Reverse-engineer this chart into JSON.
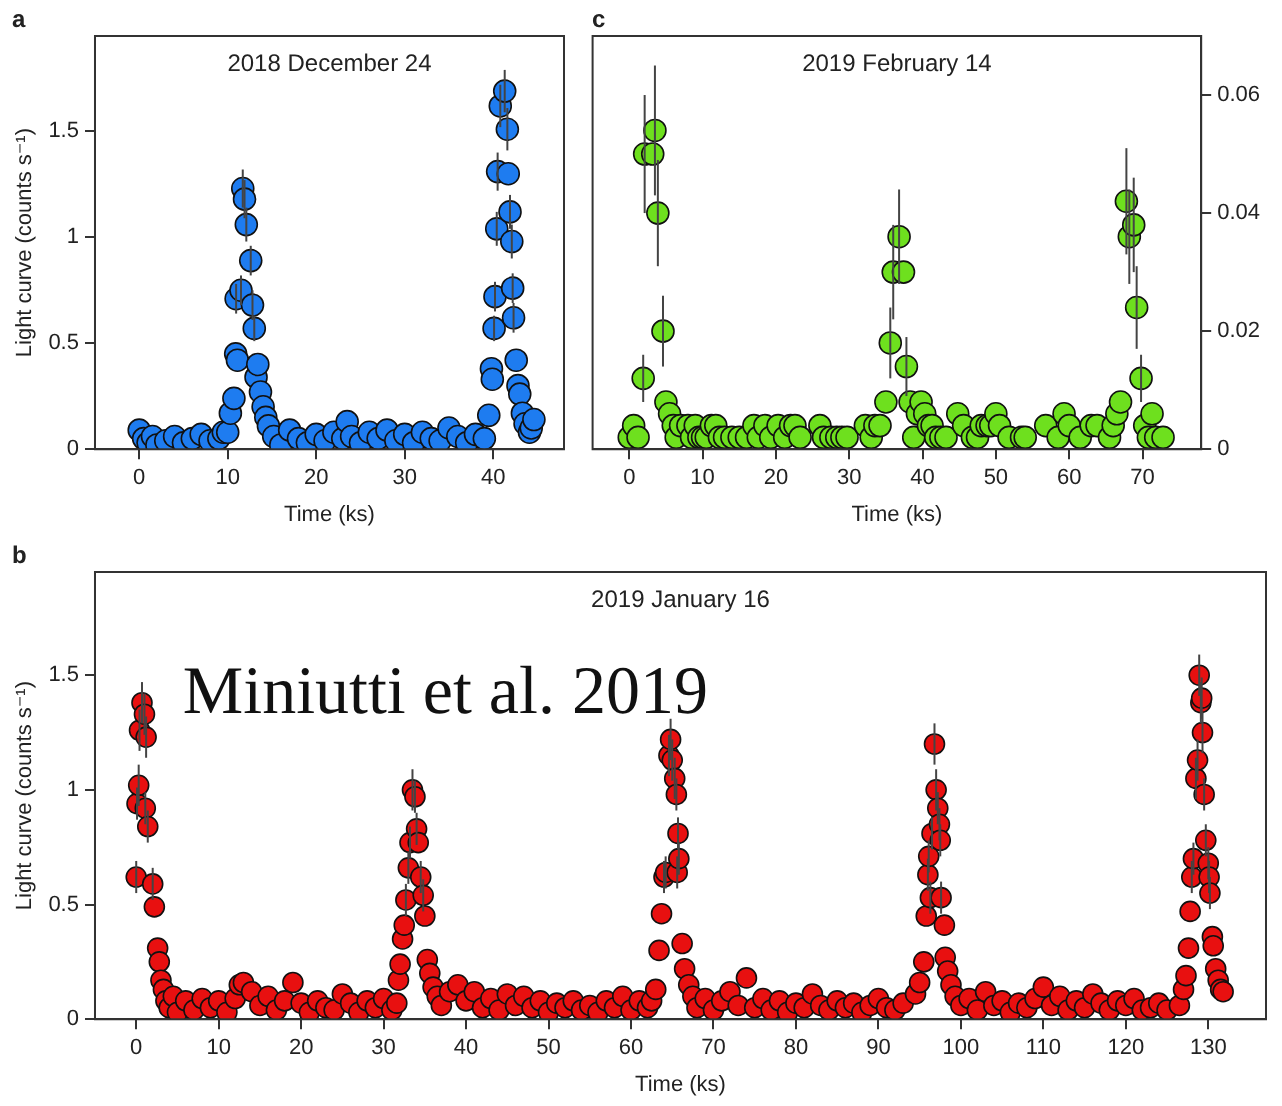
{
  "chart_data": [
    {
      "type": "scatter",
      "title": "2018 December 24",
      "xlabel": "Time (ks)",
      "ylabel": "Light curve (counts s⁻¹)",
      "annotations": [
        "a"
      ],
      "marker": "circle",
      "xlim": [
        -5,
        48
      ],
      "xticks": [
        0,
        10,
        20,
        30,
        40
      ],
      "ylim": [
        0,
        1.95
      ],
      "yticks": [
        0,
        0.5,
        1,
        1.5
      ],
      "series": [
        {
          "color": "#1e7cf0",
          "x": [
            0,
            0.5,
            1,
            1.5,
            2,
            3,
            4,
            5,
            6,
            7,
            8,
            9,
            9.5,
            10,
            10.3,
            10.7,
            10.9,
            10.95,
            11.1,
            11.5,
            11.7,
            11.9,
            12.1,
            12.6,
            12.8,
            13,
            13.2,
            13.4,
            13.7,
            14,
            14.3,
            14.6,
            15.2,
            16,
            17,
            18,
            19,
            20,
            21,
            22,
            23,
            23.5,
            24,
            25,
            26,
            27,
            28,
            29,
            30,
            31,
            32,
            33,
            34,
            35,
            36,
            37,
            38,
            39,
            39.5,
            39.8,
            39.9,
            40.1,
            40.2,
            40.4,
            40.5,
            40.8,
            41.3,
            41.6,
            41.7,
            41.9,
            42.1,
            42.2,
            42.3,
            42.6,
            42.8,
            43,
            43.3,
            43.6,
            44.1,
            44.3,
            44.6
          ],
          "values": [
            0.09,
            0.05,
            0.03,
            0.06,
            0.02,
            0.04,
            0.06,
            0.03,
            0.05,
            0.07,
            0.04,
            0.05,
            0.08,
            0.08,
            0.17,
            0.24,
            0.45,
            0.71,
            0.42,
            0.75,
            1.23,
            1.18,
            1.06,
            0.89,
            0.68,
            0.57,
            0.34,
            0.4,
            0.27,
            0.2,
            0.15,
            0.11,
            0.06,
            0.02,
            0.09,
            0.05,
            0.03,
            0.07,
            0.04,
            0.08,
            0.05,
            0.13,
            0.06,
            0.03,
            0.08,
            0.05,
            0.09,
            0.04,
            0.07,
            0.03,
            0.08,
            0.05,
            0.04,
            0.1,
            0.06,
            0.03,
            0.07,
            0.05,
            0.16,
            0.38,
            0.33,
            0.57,
            0.72,
            1.04,
            1.31,
            1.62,
            1.69,
            1.51,
            1.3,
            1.12,
            0.98,
            0.76,
            0.62,
            0.42,
            0.3,
            0.26,
            0.17,
            0.12,
            0.08,
            0.1,
            0.14
          ],
          "errors": [
            null,
            null,
            null,
            null,
            null,
            null,
            null,
            null,
            null,
            null,
            null,
            null,
            null,
            null,
            null,
            null,
            null,
            0.07,
            null,
            0.07,
            0.09,
            0.09,
            0.08,
            0.07,
            0.07,
            0.06,
            null,
            null,
            null,
            null,
            null,
            null,
            null,
            null,
            null,
            null,
            null,
            null,
            null,
            null,
            null,
            null,
            null,
            null,
            null,
            null,
            null,
            null,
            null,
            null,
            null,
            null,
            null,
            null,
            null,
            null,
            null,
            null,
            null,
            null,
            null,
            0.06,
            0.07,
            0.08,
            0.09,
            0.1,
            0.1,
            0.1,
            null,
            0.08,
            0.08,
            0.07,
            0.07,
            null,
            null,
            null,
            null,
            null,
            null,
            null,
            null
          ]
        }
      ]
    },
    {
      "type": "scatter",
      "title": "2019 February 14",
      "xlabel": "Time (ks)",
      "annotations": [
        "c"
      ],
      "marker": "circle",
      "xlim": [
        -5,
        78
      ],
      "xticks": [
        0,
        10,
        20,
        30,
        40,
        50,
        60,
        70
      ],
      "y2lim": [
        0,
        0.07
      ],
      "y2ticks": [
        0,
        0.02,
        0.04,
        0.06
      ],
      "series": [
        {
          "color": "#6ee01e",
          "axis": "y2",
          "x": [
            0,
            0.6,
            1.2,
            1.9,
            2.1,
            3.2,
            3.5,
            3.9,
            4.6,
            5,
            5.5,
            6,
            6.4,
            7,
            8,
            8.5,
            9,
            9.5,
            10,
            10.5,
            11.2,
            11.8,
            12.3,
            13,
            14,
            15,
            16,
            17,
            17.6,
            18.5,
            19.3,
            20.3,
            21.2,
            22,
            22.6,
            23.3,
            26,
            26.5,
            27.5,
            28.3,
            29,
            29.7,
            32.2,
            33,
            33.5,
            34.2,
            35,
            35.6,
            36,
            36.8,
            37.4,
            37.8,
            38.3,
            38.8,
            39.3,
            39.8,
            40.3,
            40.8,
            41.3,
            41.8,
            42.5,
            43.2,
            44.8,
            45.6,
            46.8,
            47.5,
            48,
            48.8,
            49.3,
            50,
            50.5,
            51.8,
            53.5,
            54,
            56.8,
            58.5,
            59.3,
            60,
            61.5,
            63,
            63.8,
            65.5,
            66,
            66.5,
            67,
            67.8,
            68.2,
            68.8,
            69.2,
            69.8,
            70.3,
            70.8,
            71.3,
            71.8,
            72.8
          ],
          "values": [
            0.002,
            0.004,
            0.002,
            0.012,
            0.05,
            0.05,
            0.054,
            0.04,
            0.02,
            0.008,
            0.006,
            0.004,
            0.002,
            0.004,
            0.004,
            0.002,
            0.004,
            0.002,
            0.002,
            0.002,
            0.004,
            0.004,
            0.002,
            0.002,
            0.002,
            0.002,
            0.002,
            0.004,
            0.002,
            0.004,
            0.002,
            0.004,
            0.002,
            0.004,
            0.004,
            0.002,
            0.004,
            0.002,
            0.002,
            0.002,
            0.002,
            0.002,
            0.004,
            0.002,
            0.004,
            0.004,
            0.008,
            0.018,
            0.03,
            0.036,
            0.03,
            0.014,
            0.008,
            0.002,
            0.006,
            0.008,
            0.006,
            0.004,
            0.004,
            0.002,
            0.002,
            0.002,
            0.006,
            0.004,
            0.002,
            0.002,
            0.004,
            0.004,
            0.004,
            0.006,
            0.004,
            0.002,
            0.002,
            0.002,
            0.004,
            0.002,
            0.006,
            0.004,
            0.002,
            0.004,
            0.004,
            0.002,
            0.004,
            0.006,
            0.008,
            0.042,
            0.036,
            0.038,
            0.024,
            0.012,
            0.004,
            0.002,
            0.006,
            0.002,
            0.002
          ],
          "errors": [
            null,
            null,
            null,
            0.004,
            0.01,
            null,
            0.011,
            0.009,
            0.006,
            null,
            null,
            null,
            null,
            null,
            null,
            null,
            null,
            null,
            null,
            null,
            null,
            null,
            null,
            null,
            null,
            null,
            null,
            null,
            null,
            null,
            null,
            null,
            null,
            null,
            null,
            null,
            null,
            null,
            null,
            null,
            null,
            null,
            null,
            null,
            null,
            null,
            null,
            0.006,
            0.008,
            0.008,
            null,
            0.005,
            null,
            null,
            null,
            null,
            null,
            null,
            null,
            null,
            null,
            null,
            null,
            null,
            null,
            null,
            null,
            null,
            null,
            null,
            null,
            null,
            null,
            null,
            null,
            null,
            null,
            null,
            null,
            null,
            null,
            null,
            null,
            null,
            null,
            0.009,
            0.008,
            0.008,
            0.007,
            0.004,
            null,
            null,
            null,
            null,
            null
          ]
        }
      ]
    },
    {
      "type": "scatter",
      "title": "2019 January 16",
      "xlabel": "Time (ks)",
      "ylabel": "Light curve (counts s⁻¹)",
      "annotations": [
        "b",
        "Miniutti et al. 2019"
      ],
      "marker": "circle",
      "xlim": [
        -5,
        137
      ],
      "xticks": [
        0,
        10,
        20,
        30,
        40,
        50,
        60,
        70,
        80,
        90,
        100,
        110,
        120,
        130
      ],
      "ylim": [
        0,
        1.95
      ],
      "yticks": [
        0,
        0.5,
        1,
        1.5
      ],
      "series": [
        {
          "color": "#e81010",
          "x": [
            0,
            0.1,
            0.3,
            0.4,
            0.7,
            1,
            1.1,
            1.2,
            1.4,
            2,
            2.2,
            2.6,
            2.8,
            3,
            3.3,
            3.6,
            4,
            4.5,
            5,
            6,
            7,
            8,
            9,
            10,
            11,
            12,
            12.5,
            13,
            14,
            15,
            16,
            17,
            18,
            19,
            20,
            21,
            22,
            23,
            24,
            25,
            26,
            27,
            28,
            29,
            30,
            31,
            31.6,
            31.8,
            32,
            32.3,
            32.5,
            32.7,
            33,
            33.2,
            33.5,
            33.8,
            34,
            34.2,
            34.5,
            34.8,
            35,
            35.3,
            35.6,
            36,
            36.5,
            37,
            38,
            39,
            40,
            41,
            42,
            43,
            44,
            45,
            46,
            47,
            48,
            49,
            50,
            51,
            52,
            53,
            54,
            55,
            56,
            57,
            58,
            59,
            60,
            61,
            62,
            62.5,
            63,
            63.4,
            63.7,
            64,
            64.2,
            64.6,
            64.8,
            65,
            65.3,
            65.5,
            65.6,
            65.7,
            65.8,
            66.2,
            66.5,
            67,
            67.5,
            68,
            69,
            70,
            71,
            72,
            73,
            74,
            75,
            76,
            77,
            78,
            79,
            80,
            81,
            82,
            83,
            84,
            85,
            86,
            87,
            88,
            89,
            90,
            91,
            92,
            93,
            94.5,
            95,
            95.5,
            95.8,
            96,
            96.1,
            96.3,
            96.5,
            96.8,
            97,
            97.2,
            97.4,
            97.5,
            97.6,
            98,
            98.1,
            98.4,
            98.8,
            99.3,
            100,
            101,
            102,
            103,
            104,
            105,
            106,
            107,
            108,
            109,
            110,
            111,
            112,
            113,
            114,
            115,
            116,
            117,
            118,
            119,
            120,
            121,
            122,
            123,
            124,
            125,
            126.5,
            127,
            127.3,
            127.6,
            127.8,
            128,
            128.2,
            128.5,
            128.7,
            128.9,
            129.1,
            129.2,
            129.3,
            129.5,
            129.7,
            130,
            130.1,
            130.2,
            130.5,
            130.6,
            130.9,
            131.2,
            131.5,
            131.8
          ],
          "values": [
            0.62,
            0.94,
            1.02,
            1.26,
            1.38,
            1.33,
            0.92,
            1.23,
            0.84,
            0.59,
            0.49,
            0.31,
            0.25,
            0.17,
            0.13,
            0.08,
            0.05,
            0.1,
            0.03,
            0.08,
            0.04,
            0.09,
            0.05,
            0.08,
            0.03,
            0.09,
            0.15,
            0.16,
            0.12,
            0.06,
            0.1,
            0.04,
            0.08,
            0.16,
            0.07,
            0.03,
            0.08,
            0.05,
            0.04,
            0.11,
            0.07,
            0.03,
            0.08,
            0.05,
            0.09,
            0.04,
            0.07,
            0.17,
            0.24,
            0.35,
            0.41,
            0.52,
            0.66,
            0.77,
            1.0,
            0.97,
            0.83,
            0.77,
            0.62,
            0.54,
            0.45,
            0.26,
            0.2,
            0.14,
            0.1,
            0.06,
            0.12,
            0.15,
            0.08,
            0.12,
            0.05,
            0.09,
            0.04,
            0.11,
            0.06,
            0.1,
            0.05,
            0.08,
            0.03,
            0.07,
            0.05,
            0.08,
            0.04,
            0.06,
            0.03,
            0.08,
            0.05,
            0.1,
            0.04,
            0.08,
            0.05,
            0.08,
            0.13,
            0.3,
            0.46,
            0.62,
            0.64,
            1.15,
            1.22,
            1.13,
            1.05,
            0.98,
            0.64,
            0.81,
            0.7,
            0.33,
            0.22,
            0.15,
            0.1,
            0.05,
            0.09,
            0.04,
            0.08,
            0.12,
            0.06,
            0.18,
            0.05,
            0.09,
            0.04,
            0.08,
            0.03,
            0.07,
            0.05,
            0.11,
            0.06,
            0.04,
            0.08,
            0.05,
            0.07,
            0.03,
            0.06,
            0.09,
            0.05,
            0.04,
            0.07,
            0.11,
            0.16,
            0.25,
            0.45,
            0.63,
            0.71,
            0.53,
            0.81,
            1.2,
            1.0,
            0.92,
            0.85,
            0.78,
            0.53,
            0.41,
            0.27,
            0.21,
            0.15,
            0.1,
            0.06,
            0.09,
            0.04,
            0.12,
            0.06,
            0.08,
            0.03,
            0.07,
            0.05,
            0.09,
            0.14,
            0.06,
            0.1,
            0.04,
            0.08,
            0.05,
            0.11,
            0.07,
            0.04,
            0.08,
            0.06,
            0.09,
            0.04,
            0.05,
            0.07,
            0.04,
            0.06,
            0.13,
            0.19,
            0.31,
            0.47,
            0.62,
            0.7,
            1.05,
            1.13,
            1.5,
            1.38,
            1.4,
            1.25,
            0.98,
            0.78,
            0.68,
            0.62,
            0.55,
            0.36,
            0.32,
            0.22,
            0.17,
            0.13,
            0.12
          ],
          "errors": [
            0.07,
            0.07,
            0.09,
            0.09,
            0.09,
            0.09,
            0.07,
            0.09,
            0.07,
            0.07,
            null,
            null,
            null,
            null,
            null,
            null,
            null,
            null,
            null,
            null,
            null,
            null,
            null,
            null,
            null,
            null,
            null,
            null,
            null,
            null,
            null,
            null,
            null,
            null,
            null,
            null,
            null,
            null,
            null,
            null,
            null,
            null,
            null,
            null,
            null,
            null,
            null,
            null,
            null,
            null,
            null,
            0.07,
            0.07,
            0.07,
            0.09,
            0.07,
            0.07,
            null,
            0.07,
            0.07,
            null,
            null,
            null,
            null,
            null,
            null,
            null,
            null,
            null,
            null,
            null,
            null,
            null,
            null,
            null,
            null,
            null,
            null,
            null,
            null,
            null,
            null,
            null,
            null,
            null,
            null,
            null,
            null,
            null,
            null,
            null,
            null,
            null,
            null,
            null,
            0.07,
            0.07,
            0.09,
            0.09,
            0.09,
            0.09,
            0.07,
            0.07,
            0.07,
            0.07,
            null,
            null,
            null,
            null,
            null,
            null,
            null,
            null,
            null,
            null,
            null,
            null,
            null,
            null,
            null,
            null,
            null,
            null,
            null,
            null,
            null,
            null,
            null,
            null,
            null,
            null,
            null,
            null,
            null,
            null,
            null,
            null,
            null,
            null,
            0.07,
            0.07,
            0.07,
            0.07,
            0.09,
            0.09,
            0.07,
            0.07,
            0.07,
            0.07,
            null,
            null,
            null,
            null,
            null,
            null,
            null,
            null,
            null,
            null,
            null,
            null,
            null,
            null,
            null,
            null,
            null,
            null,
            null,
            null,
            null,
            null,
            null,
            null,
            null,
            null,
            null,
            null,
            null,
            null,
            null,
            null,
            null,
            null,
            null,
            null,
            0.07,
            0.07,
            0.09,
            0.09,
            0.09,
            0.09,
            0.09,
            0.09,
            0.07,
            0.07,
            0.07,
            0.07,
            0.07,
            null,
            null,
            null,
            null,
            null,
            null
          ]
        }
      ]
    }
  ]
}
